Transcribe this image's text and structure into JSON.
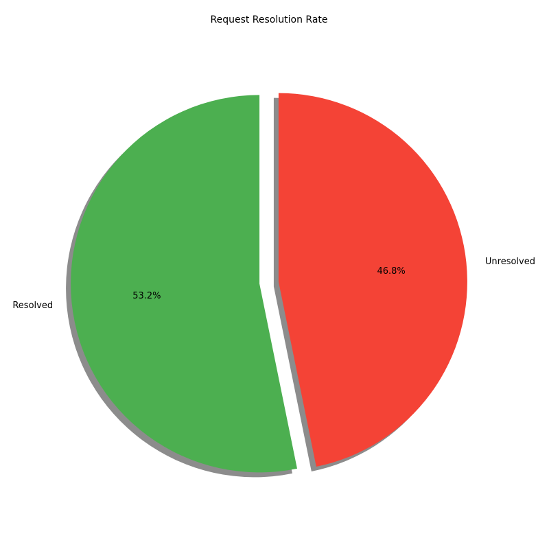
{
  "chart_data": {
    "type": "pie",
    "title": "Request Resolution Rate",
    "categories": [
      "Resolved",
      "Unresolved"
    ],
    "values": [
      53.2,
      46.8
    ],
    "percent_labels": [
      "53.2%",
      "46.8%"
    ],
    "colors": [
      "#4caf50",
      "#f44336"
    ],
    "exploded": [
      "Resolved",
      "Unresolved"
    ],
    "shadow": true,
    "start_angle": 90,
    "direction": "counterclockwise"
  }
}
